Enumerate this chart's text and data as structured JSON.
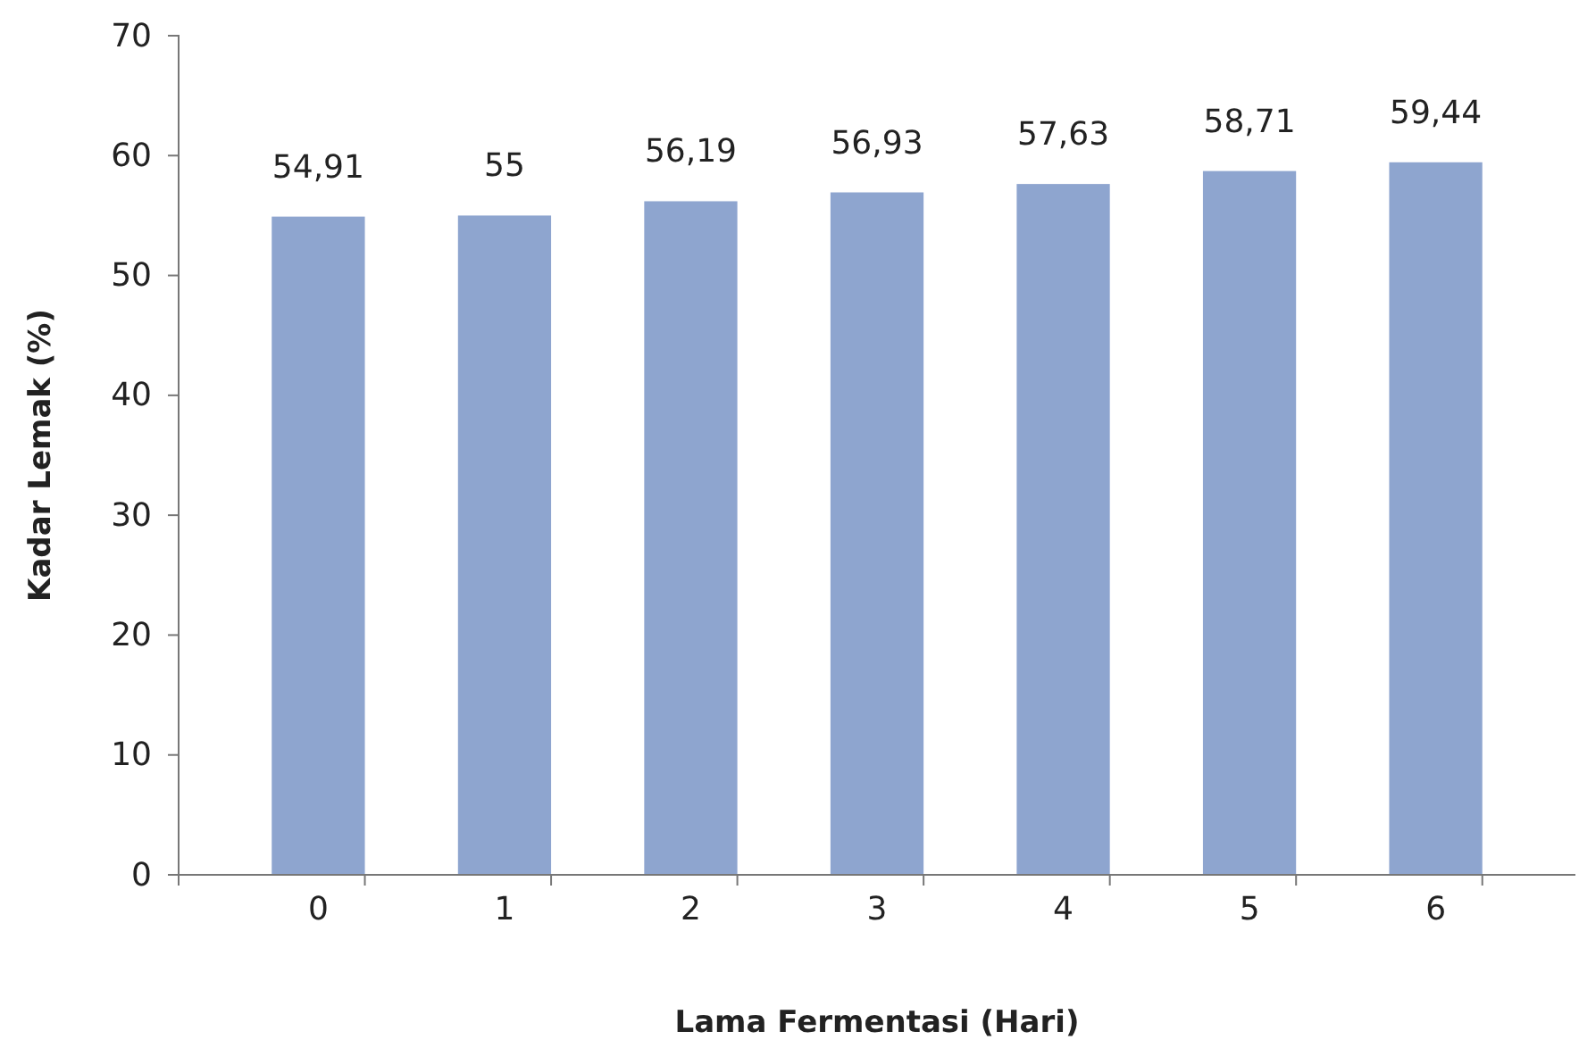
{
  "chart_data": {
    "type": "bar",
    "xlabel": "Lama Fermentasi (Hari)",
    "ylabel": "Kadar Lemak (%)",
    "categories": [
      "0",
      "1",
      "2",
      "3",
      "4",
      "5",
      "6"
    ],
    "values": [
      54.91,
      55,
      56.19,
      56.93,
      57.63,
      58.71,
      59.44
    ],
    "value_labels": [
      "54,91",
      "55",
      "56,19",
      "56,93",
      "57,63",
      "58,71",
      "59,44"
    ],
    "color": "#8ea5cf",
    "ylim": [
      0,
      70
    ],
    "yticks": [
      0,
      10,
      20,
      30,
      40,
      50,
      60,
      70
    ],
    "grid": false
  }
}
